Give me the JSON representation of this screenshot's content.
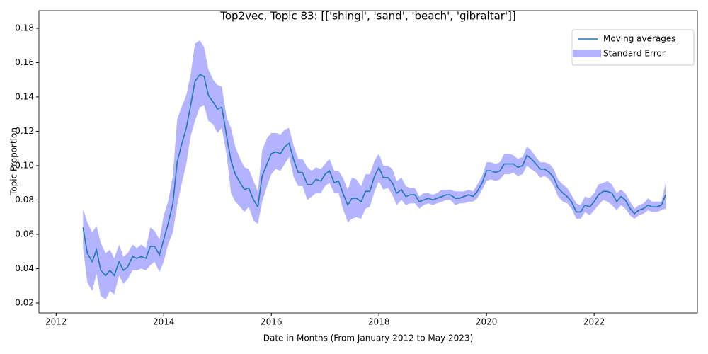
{
  "chart_data": {
    "type": "line",
    "title": "Top2vec, Topic 83: [['shingl', 'sand', 'beach', 'gibraltar']]",
    "x_label": "Date in Months (From January 2012 to May 2023)",
    "y_label": "Topic Proportion",
    "x": [
      2012.5,
      2012.58,
      2012.67,
      2012.75,
      2012.83,
      2012.92,
      2013,
      2013.08,
      2013.17,
      2013.25,
      2013.33,
      2013.42,
      2013.5,
      2013.58,
      2013.67,
      2013.75,
      2013.83,
      2013.92,
      2014,
      2014.08,
      2014.17,
      2014.25,
      2014.33,
      2014.42,
      2014.5,
      2014.58,
      2014.67,
      2014.75,
      2014.83,
      2014.92,
      2015,
      2015.08,
      2015.17,
      2015.25,
      2015.33,
      2015.42,
      2015.5,
      2015.58,
      2015.67,
      2015.75,
      2015.83,
      2015.92,
      2016,
      2016.08,
      2016.17,
      2016.25,
      2016.33,
      2016.42,
      2016.5,
      2016.58,
      2016.67,
      2016.75,
      2016.83,
      2016.92,
      2017,
      2017.08,
      2017.17,
      2017.25,
      2017.33,
      2017.42,
      2017.5,
      2017.58,
      2017.67,
      2017.75,
      2017.83,
      2017.92,
      2018,
      2018.08,
      2018.17,
      2018.25,
      2018.33,
      2018.42,
      2018.5,
      2018.58,
      2018.67,
      2018.75,
      2018.83,
      2018.92,
      2019,
      2019.08,
      2019.17,
      2019.25,
      2019.33,
      2019.42,
      2019.5,
      2019.58,
      2019.67,
      2019.75,
      2019.83,
      2019.92,
      2020,
      2020.08,
      2020.17,
      2020.25,
      2020.33,
      2020.42,
      2020.5,
      2020.58,
      2020.67,
      2020.75,
      2020.83,
      2020.92,
      2021,
      2021.08,
      2021.17,
      2021.25,
      2021.33,
      2021.42,
      2021.5,
      2021.58,
      2021.67,
      2021.75,
      2021.83,
      2021.92,
      2022,
      2022.08,
      2022.17,
      2022.25,
      2022.33,
      2022.42,
      2022.5,
      2022.58,
      2022.67,
      2022.75,
      2022.83,
      2022.92,
      2023,
      2023.08,
      2023.17,
      2023.25,
      2023.33
    ],
    "series": [
      {
        "name": "Moving averages",
        "color": "#1f77b4",
        "values": [
          0.064,
          0.049,
          0.044,
          0.051,
          0.039,
          0.036,
          0.039,
          0.036,
          0.044,
          0.039,
          0.041,
          0.047,
          0.046,
          0.047,
          0.046,
          0.053,
          0.053,
          0.048,
          0.057,
          0.066,
          0.078,
          0.102,
          0.112,
          0.122,
          0.135,
          0.149,
          0.153,
          0.152,
          0.141,
          0.137,
          0.133,
          0.134,
          0.117,
          0.103,
          0.095,
          0.09,
          0.086,
          0.087,
          0.08,
          0.076,
          0.094,
          0.101,
          0.107,
          0.108,
          0.107,
          0.111,
          0.113,
          0.103,
          0.096,
          0.096,
          0.089,
          0.089,
          0.092,
          0.091,
          0.095,
          0.097,
          0.09,
          0.091,
          0.084,
          0.077,
          0.081,
          0.081,
          0.079,
          0.085,
          0.085,
          0.094,
          0.099,
          0.093,
          0.093,
          0.09,
          0.084,
          0.086,
          0.082,
          0.083,
          0.083,
          0.079,
          0.08,
          0.081,
          0.08,
          0.081,
          0.082,
          0.083,
          0.083,
          0.081,
          0.081,
          0.082,
          0.083,
          0.082,
          0.085,
          0.09,
          0.097,
          0.097,
          0.096,
          0.097,
          0.101,
          0.101,
          0.101,
          0.099,
          0.1,
          0.106,
          0.104,
          0.101,
          0.098,
          0.098,
          0.096,
          0.093,
          0.087,
          0.084,
          0.082,
          0.079,
          0.073,
          0.073,
          0.077,
          0.076,
          0.079,
          0.083,
          0.085,
          0.085,
          0.084,
          0.079,
          0.082,
          0.08,
          0.075,
          0.072,
          0.074,
          0.075,
          0.077,
          0.076,
          0.076,
          0.077,
          0.083
        ]
      }
    ],
    "band": {
      "name": "Standard Error",
      "color": "#b3b3ff",
      "lower": [
        0.052,
        0.032,
        0.027,
        0.037,
        0.024,
        0.022,
        0.027,
        0.025,
        0.036,
        0.031,
        0.034,
        0.039,
        0.039,
        0.04,
        0.039,
        0.042,
        0.044,
        0.038,
        0.044,
        0.054,
        0.061,
        0.077,
        0.089,
        0.101,
        0.117,
        0.126,
        0.134,
        0.135,
        0.126,
        0.124,
        0.119,
        0.122,
        0.106,
        0.084,
        0.079,
        0.076,
        0.073,
        0.076,
        0.068,
        0.066,
        0.079,
        0.088,
        0.095,
        0.098,
        0.097,
        0.101,
        0.105,
        0.093,
        0.088,
        0.088,
        0.08,
        0.082,
        0.084,
        0.084,
        0.088,
        0.09,
        0.084,
        0.084,
        0.075,
        0.067,
        0.069,
        0.07,
        0.069,
        0.075,
        0.076,
        0.085,
        0.091,
        0.086,
        0.087,
        0.083,
        0.077,
        0.08,
        0.077,
        0.078,
        0.078,
        0.075,
        0.077,
        0.078,
        0.077,
        0.078,
        0.079,
        0.08,
        0.08,
        0.077,
        0.078,
        0.078,
        0.079,
        0.079,
        0.081,
        0.086,
        0.091,
        0.092,
        0.091,
        0.092,
        0.095,
        0.095,
        0.096,
        0.094,
        0.095,
        0.1,
        0.098,
        0.096,
        0.093,
        0.094,
        0.092,
        0.088,
        0.082,
        0.079,
        0.078,
        0.075,
        0.069,
        0.069,
        0.073,
        0.071,
        0.074,
        0.077,
        0.08,
        0.079,
        0.077,
        0.074,
        0.077,
        0.075,
        0.071,
        0.069,
        0.071,
        0.072,
        0.074,
        0.073,
        0.073,
        0.074,
        0.075
      ],
      "upper": [
        0.075,
        0.067,
        0.061,
        0.065,
        0.055,
        0.049,
        0.051,
        0.046,
        0.054,
        0.047,
        0.049,
        0.054,
        0.052,
        0.054,
        0.052,
        0.064,
        0.062,
        0.057,
        0.071,
        0.079,
        0.094,
        0.127,
        0.134,
        0.141,
        0.153,
        0.171,
        0.173,
        0.169,
        0.156,
        0.15,
        0.147,
        0.146,
        0.128,
        0.122,
        0.111,
        0.104,
        0.099,
        0.098,
        0.091,
        0.085,
        0.109,
        0.116,
        0.119,
        0.119,
        0.118,
        0.121,
        0.122,
        0.111,
        0.104,
        0.104,
        0.099,
        0.097,
        0.099,
        0.098,
        0.101,
        0.104,
        0.097,
        0.097,
        0.093,
        0.086,
        0.093,
        0.092,
        0.088,
        0.095,
        0.095,
        0.103,
        0.107,
        0.1,
        0.1,
        0.098,
        0.091,
        0.093,
        0.088,
        0.087,
        0.087,
        0.082,
        0.084,
        0.084,
        0.083,
        0.084,
        0.086,
        0.086,
        0.086,
        0.085,
        0.085,
        0.085,
        0.086,
        0.085,
        0.089,
        0.094,
        0.102,
        0.102,
        0.101,
        0.102,
        0.107,
        0.107,
        0.106,
        0.104,
        0.105,
        0.111,
        0.109,
        0.105,
        0.102,
        0.102,
        0.101,
        0.098,
        0.092,
        0.089,
        0.087,
        0.083,
        0.078,
        0.077,
        0.082,
        0.081,
        0.084,
        0.089,
        0.09,
        0.091,
        0.089,
        0.084,
        0.086,
        0.084,
        0.079,
        0.075,
        0.077,
        0.078,
        0.081,
        0.079,
        0.079,
        0.079,
        0.09
      ]
    },
    "xlim": [
      2011.68,
      2023.92
    ],
    "ylim": [
      0.0142,
      0.1903
    ],
    "xticks": [
      2012,
      2014,
      2016,
      2018,
      2020,
      2022
    ],
    "yticks": [
      0.02,
      0.04,
      0.06,
      0.08,
      {
        "value": 0.1,
        "label": "0.10"
      },
      0.12,
      0.14,
      0.16,
      0.18
    ],
    "legend": "upper right"
  }
}
